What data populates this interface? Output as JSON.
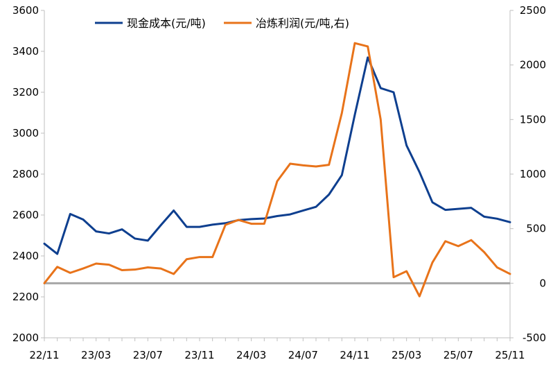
{
  "chart_data": {
    "type": "line",
    "title": "",
    "x": [
      "22/11",
      "22/12",
      "23/01",
      "23/02",
      "23/03",
      "23/04",
      "23/05",
      "23/06",
      "23/07",
      "23/08",
      "23/09",
      "23/10",
      "23/11",
      "23/12",
      "24/01",
      "24/02",
      "24/03",
      "24/04",
      "24/05",
      "24/06",
      "24/07",
      "24/08",
      "24/09",
      "24/10",
      "24/11",
      "24/12",
      "25/01",
      "25/02",
      "25/03",
      "25/04",
      "25/05",
      "25/06",
      "25/07",
      "25/08",
      "25/09",
      "25/10",
      "25/11"
    ],
    "x_tick_labels": [
      "22/11",
      "23/03",
      "23/07",
      "23/11",
      "24/03",
      "24/07",
      "24/11",
      "25/03",
      "25/07",
      "25/11"
    ],
    "y_left": {
      "ylim": [
        2000,
        3600
      ],
      "ticks": [
        "2000",
        "2200",
        "2400",
        "2600",
        "2800",
        "3000",
        "3200",
        "3400",
        "3600"
      ]
    },
    "y_right": {
      "ylim": [
        -500,
        2500
      ],
      "ticks": [
        "-500",
        "0",
        "500",
        "1000",
        "1500",
        "2000",
        "2500"
      ]
    },
    "zero_line": {
      "axis": "right",
      "value": 0,
      "color": "#a6a6a6"
    },
    "legend_placement": "top-center",
    "grid": false,
    "series": [
      {
        "name": "现金成本(元/吨)",
        "axis": "left",
        "color": "#0e3f8f",
        "values": [
          2460,
          2410,
          2605,
          2578,
          2520,
          2510,
          2530,
          2485,
          2475,
          2550,
          2622,
          2542,
          2542,
          2553,
          2560,
          2575,
          2580,
          2583,
          2595,
          2603,
          2622,
          2640,
          2700,
          2795,
          3090,
          3370,
          3220,
          3200,
          2940,
          2810,
          2662,
          2625,
          2630,
          2635,
          2592,
          2582,
          2565
        ]
      },
      {
        "name": "冶炼利润(元/吨,右)",
        "axis": "right",
        "color": "#e8731a",
        "values": [
          0,
          150,
          95,
          135,
          180,
          170,
          120,
          125,
          145,
          135,
          85,
          220,
          240,
          240,
          535,
          580,
          545,
          545,
          935,
          1095,
          1080,
          1070,
          1085,
          1560,
          2200,
          2170,
          1500,
          55,
          110,
          -120,
          190,
          385,
          340,
          395,
          285,
          145,
          85
        ]
      }
    ]
  }
}
